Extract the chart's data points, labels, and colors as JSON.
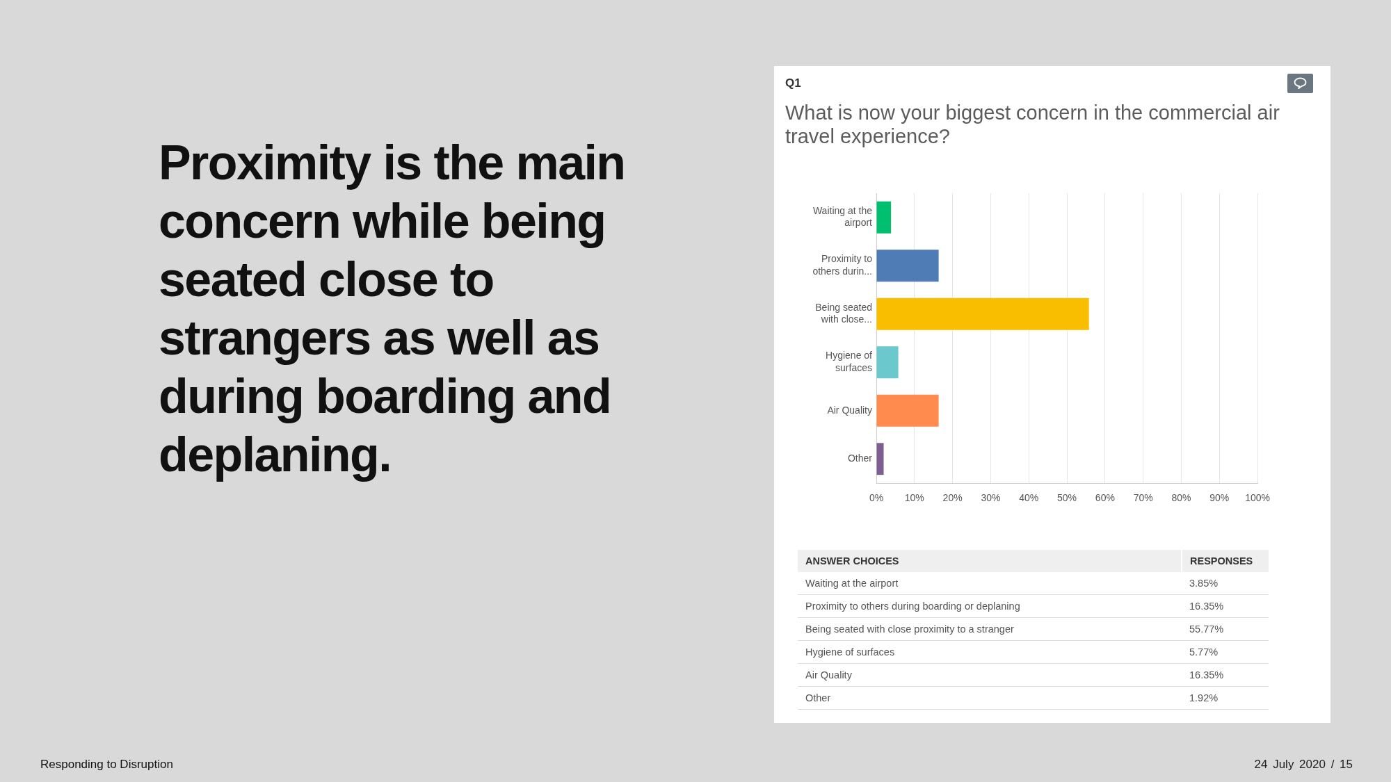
{
  "chart_data": [
    {
      "type": "bar",
      "orientation": "horizontal",
      "title": "What is now your biggest concern in the commercial air travel experience?",
      "categories": [
        "Waiting at the airport",
        "Proximity to others durin...",
        "Being seated with close...",
        "Hygiene of surfaces",
        "Air Quality",
        "Other"
      ],
      "values": [
        3.85,
        16.35,
        55.77,
        5.77,
        16.35,
        1.92
      ],
      "colors": [
        "#00bf6f",
        "#507cb6",
        "#f9be00",
        "#6bc8cd",
        "#ff8b4f",
        "#7d5e90"
      ],
      "xlim": [
        0,
        100
      ],
      "xticks": [
        {
          "value": 0,
          "label": "0%"
        },
        {
          "value": 10,
          "label": "10%"
        },
        {
          "value": 20,
          "label": "20%"
        },
        {
          "value": 30,
          "label": "30%"
        },
        {
          "value": 40,
          "label": "40%"
        },
        {
          "value": 50,
          "label": "50%"
        },
        {
          "value": 60,
          "label": "60%"
        },
        {
          "value": 70,
          "label": "70%"
        },
        {
          "value": 80,
          "label": "80%"
        },
        {
          "value": 90,
          "label": "90%"
        },
        {
          "value": 100,
          "label": "100%"
        }
      ],
      "grid": "x",
      "annotations": [
        "Proximity is the main concern while being seated close to strangers as well as during boarding and deplaning.",
        "Q1",
        "Responding to Disruption",
        "24 July 2020 / 15"
      ]
    },
    {
      "type": "other",
      "annotations": [
        "ANSWER CHOICES",
        "RESPONSES",
        "Waiting at the airport",
        "3.85%",
        "Proximity to others during boarding or deplaning",
        "16.35%",
        "Being seated with close proximity to a stranger",
        "55.77%",
        "Hygiene of surfaces",
        "5.77%",
        "Air Quality",
        "16.35%",
        "Other",
        "1.92%"
      ]
    }
  ]
}
